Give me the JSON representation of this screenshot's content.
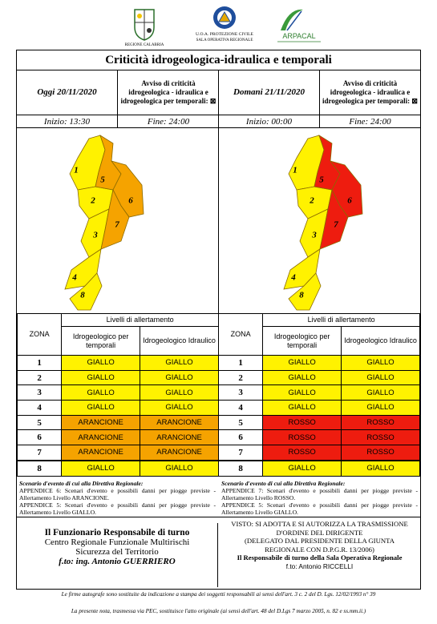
{
  "header": {
    "logo_left": "REGIONE CALABRIA",
    "logo_center": [
      "U.O.A. PROTEZIONE CIVILE",
      "SALA OPERATIVA REGIONALE"
    ],
    "logo_right": "ARPACAL",
    "title": "Criticità idrogeologica-idraulica e temporali"
  },
  "panels": [
    {
      "date": "Oggi 20/11/2020",
      "notice": "Avviso di criticità idrogeologica - idraulica e idrogeologica per temporali: ⊠",
      "start": "Inizio: 13:30",
      "end": "Fine: 24:00"
    },
    {
      "date": "Domani 21/11/2020",
      "notice": "Avviso di criticità idrogeologica - idraulica e idrogeologica per temporali: ⊠",
      "start": "Inizio: 00:00",
      "end": "Fine: 24:00"
    }
  ],
  "tables": [
    {
      "zone_header": "ZONA",
      "group": "Livelli di allertamento",
      "columns": [
        "Idrogeologico per temporali",
        "Idrogeologico Idraulico"
      ],
      "rows": [
        {
          "zone": "1",
          "levels": [
            "GIALLO",
            "GIALLO"
          ],
          "color": "#fff200"
        },
        {
          "zone": "2",
          "levels": [
            "GIALLO",
            "GIALLO"
          ],
          "color": "#fff200"
        },
        {
          "zone": "3",
          "levels": [
            "GIALLO",
            "GIALLO"
          ],
          "color": "#fff200"
        },
        {
          "zone": "4",
          "levels": [
            "GIALLO",
            "GIALLO"
          ],
          "color": "#fff200"
        },
        {
          "zone": "5",
          "levels": [
            "ARANCIONE",
            "ARANCIONE"
          ],
          "color": "#f5a300"
        },
        {
          "zone": "6",
          "levels": [
            "ARANCIONE",
            "ARANCIONE"
          ],
          "color": "#f5a300"
        },
        {
          "zone": "7",
          "levels": [
            "ARANCIONE",
            "ARANCIONE"
          ],
          "color": "#f5a300"
        },
        {
          "zone": "8",
          "levels": [
            "GIALLO",
            "GIALLO"
          ],
          "color": "#fff200"
        }
      ]
    },
    {
      "zone_header": "ZONA",
      "group": "Livelli di allertamento",
      "columns": [
        "Idrogeologico per temporali",
        "Idrogeologico Idraulico"
      ],
      "rows": [
        {
          "zone": "1",
          "levels": [
            "GIALLO",
            "GIALLO"
          ],
          "color": "#fff200"
        },
        {
          "zone": "2",
          "levels": [
            "GIALLO",
            "GIALLO"
          ],
          "color": "#fff200"
        },
        {
          "zone": "3",
          "levels": [
            "GIALLO",
            "GIALLO"
          ],
          "color": "#fff200"
        },
        {
          "zone": "4",
          "levels": [
            "GIALLO",
            "GIALLO"
          ],
          "color": "#fff200"
        },
        {
          "zone": "5",
          "levels": [
            "ROSSO",
            "ROSSO"
          ],
          "color": "#ee1c0f"
        },
        {
          "zone": "6",
          "levels": [
            "ROSSO",
            "ROSSO"
          ],
          "color": "#ee1c0f"
        },
        {
          "zone": "7",
          "levels": [
            "ROSSO",
            "ROSSO"
          ],
          "color": "#ee1c0f"
        },
        {
          "zone": "8",
          "levels": [
            "GIALLO",
            "GIALLO"
          ],
          "color": "#fff200"
        }
      ]
    }
  ],
  "scenarios": [
    {
      "title": "Scenario d'evento di cui alla Direttiva Regionale:",
      "lines": [
        "APPENDICE 6: Scenari d'evento e possibili danni per piogge previste - Allertamento Livello ARANCIONE.",
        "APPENDICE 5: Scenari d'evento e possibili danni per piogge previste - Allertamento Livello GIALLO."
      ]
    },
    {
      "title": "Scenario d'evento di cui alla Direttiva Regionale:",
      "lines": [
        "APPENDICE 7: Scenari d'evento e possibili danni per piogge previste - Allertamento Livello ROSSO.",
        "APPENDICE 5: Scenari d'evento e possibili danni per piogge previste - Allertamento Livello GIALLO."
      ]
    }
  ],
  "signatures": {
    "left": [
      "Il Funzionario Responsabile di turno",
      "Centro Regionale Funzionale Multirischi",
      "Sicurezza del Territorio",
      "f.to: ing. Antonio GUERRIERO"
    ],
    "right": [
      "VISTO: SI ADOTTA E SI AUTORIZZA LA TRASMISSIONE",
      "D'ORDINE DEL DIRIGENTE",
      "(DELEGATO DAL PRESIDENTE DELLA GIUNTA",
      "REGIONALE CON D.P.G.R. 13/2006)",
      "Il Responsabile di turno della Sala Operativa Regionale",
      "f.to: Antonio RICCELLI"
    ]
  },
  "footer": [
    "Le firme autografe sono sostituite da indicazione a stampa dei soggetti responsabili ai sensi dell'art. 3 c. 2 del D. Lgs. 12/02/1993 n° 39",
    "La presente nota, trasmessa via PEC, sostituisce l'atto originale (ai sensi dell'art. 48 del D.Lgs 7 marzo 2005, n. 82 e ss.mm.ii.)"
  ]
}
